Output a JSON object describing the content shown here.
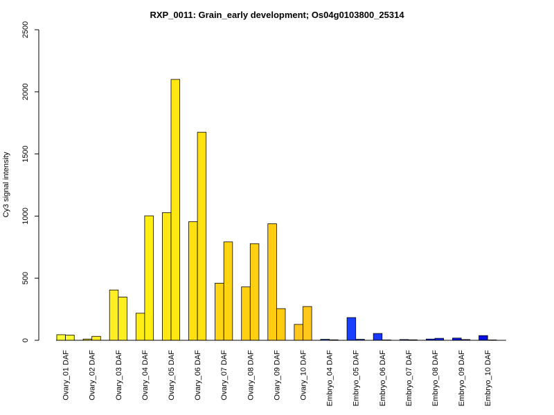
{
  "chart_data": {
    "type": "bar",
    "title": "RXP_0011: Grain_early development; Os04g0103800_25314",
    "xlabel": "",
    "ylabel": "Cy3 signal intensity",
    "ylim": [
      0,
      2500
    ],
    "yticks": [
      0,
      500,
      1000,
      1500,
      2000,
      2500
    ],
    "grid": false,
    "legend": "none",
    "bars_per_group": 2,
    "categories": [
      "Ovary_01 DAF",
      "Ovary_02 DAF",
      "Ovary_03 DAF",
      "Ovary_04 DAF",
      "Ovary_05 DAF",
      "Ovary_06 DAF",
      "Ovary_07 DAF",
      "Ovary_08 DAF",
      "Ovary_09 DAF",
      "Ovary_10 DAF",
      "Embryo_04 DAF",
      "Embryo_05 DAF",
      "Embryo_06 DAF",
      "Embryo_07 DAF",
      "Embryo_08 DAF",
      "Embryo_09 DAF",
      "Embryo_10 DAF"
    ],
    "values": [
      [
        45,
        42
      ],
      [
        10,
        32
      ],
      [
        405,
        348
      ],
      [
        218,
        1002
      ],
      [
        1028,
        2100
      ],
      [
        955,
        1675
      ],
      [
        460,
        792
      ],
      [
        430,
        778
      ],
      [
        938,
        255
      ],
      [
        128,
        272
      ],
      [
        8,
        4
      ],
      [
        183,
        8
      ],
      [
        55,
        3
      ],
      [
        6,
        4
      ],
      [
        10,
        16
      ],
      [
        18,
        6
      ],
      [
        38,
        3
      ]
    ],
    "colors": [
      "#ffff33",
      "#ffee22",
      "#ffee22",
      "#ffee11",
      "#ffe811",
      "#ffe011",
      "#ffd511",
      "#ffd011",
      "#ffcc11",
      "#ffc81a",
      "#1a55ff",
      "#1a40ff",
      "#1a38ff",
      "#1a30ff",
      "#1028ff",
      "#0a18ee",
      "#0a10dd"
    ]
  }
}
